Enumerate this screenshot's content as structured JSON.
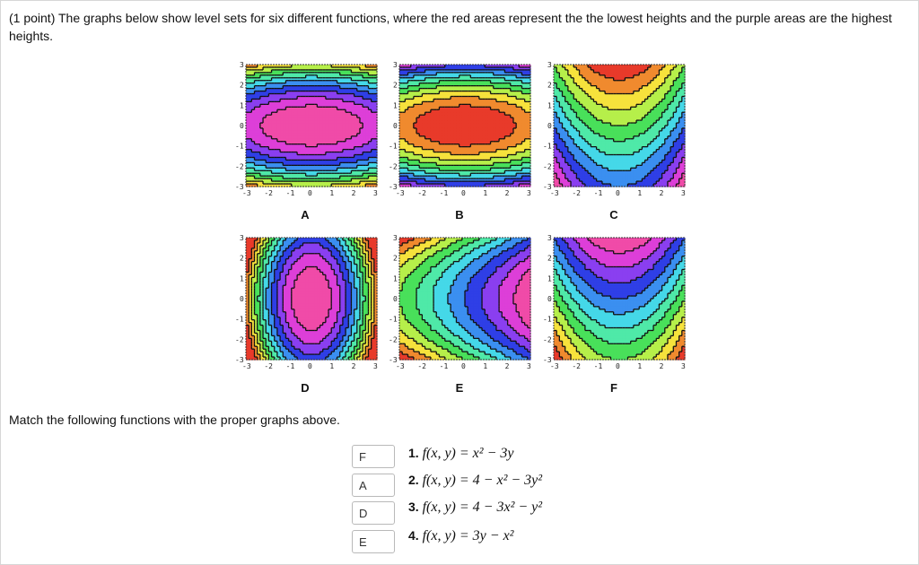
{
  "question": {
    "intro": "(1 point) The graphs below show level sets for six different functions, where the red areas represent the the lowest heights and the purple areas are the highest heights.",
    "match_instruction": "Match the following functions with the proper graphs above."
  },
  "plots": [
    {
      "label": "A",
      "func": "A"
    },
    {
      "label": "B",
      "func": "B"
    },
    {
      "label": "C",
      "func": "C"
    },
    {
      "label": "D",
      "func": "D"
    },
    {
      "label": "E",
      "func": "E"
    },
    {
      "label": "F",
      "func": "F"
    }
  ],
  "ticks": [
    "-3",
    "-2",
    "-1",
    "0",
    "1",
    "2",
    "3"
  ],
  "matches": [
    {
      "answer": "F",
      "num": "1.",
      "expr": "f(x, y) = x² − 3y"
    },
    {
      "answer": "A",
      "num": "2.",
      "expr": "f(x, y) = 4 − x² − 3y²"
    },
    {
      "answer": "D",
      "num": "3.",
      "expr": "f(x, y) = 4 − 3x² − y²"
    },
    {
      "answer": "E",
      "num": "4.",
      "expr": "f(x, y) = 3y − x²"
    }
  ]
}
